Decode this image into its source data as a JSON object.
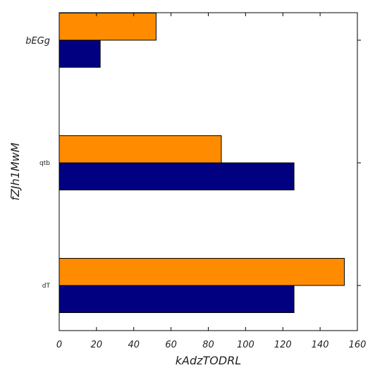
{
  "chart_data": {
    "type": "bar",
    "orientation": "horizontal",
    "categories": [
      "dT",
      "qtb",
      "bEGg"
    ],
    "series": [
      {
        "color": "#000080",
        "values": [
          126,
          126,
          22
        ]
      },
      {
        "color": "#ff8c00",
        "values": [
          153,
          87,
          52
        ]
      }
    ],
    "xlabel": "kAdzTODRL",
    "ylabel": "fZJh1MwM",
    "xlim": [
      0,
      160
    ],
    "xticks": [
      "0",
      "20",
      "40",
      "60",
      "80",
      "100",
      "120",
      "140",
      "160"
    ],
    "grid": false
  }
}
